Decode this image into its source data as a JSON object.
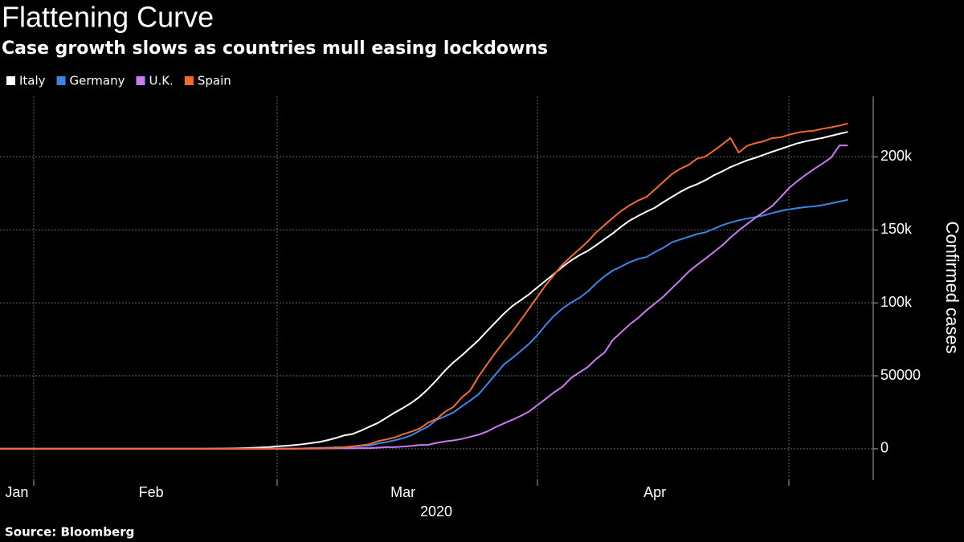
{
  "chart_data": {
    "type": "line",
    "title": "Flattening Curve",
    "subtitle": "Case growth slows as countries mull easing lockdowns",
    "y_label": "Confirmed cases",
    "x_label": "2020",
    "source": "Source: Bloomberg",
    "categories": [
      null,
      null,
      "Jan",
      null,
      null,
      null,
      null,
      null,
      null,
      null,
      null,
      null,
      null,
      null,
      null,
      null,
      null,
      null,
      "Feb",
      null,
      null,
      null,
      null,
      null,
      null,
      null,
      null,
      null,
      null,
      null,
      null,
      null,
      null,
      null,
      null,
      null,
      null,
      null,
      null,
      null,
      null,
      null,
      null,
      null,
      null,
      null,
      null,
      null,
      "Mar",
      null,
      null,
      null,
      null,
      null,
      null,
      null,
      null,
      null,
      null,
      null,
      null,
      null,
      null,
      null,
      null,
      null,
      null,
      null,
      null,
      null,
      null,
      null,
      null,
      null,
      null,
      null,
      null,
      null,
      "Apr",
      null,
      null,
      null,
      null,
      null,
      null,
      null,
      null,
      null,
      null,
      null,
      null,
      null,
      null,
      null,
      null,
      null,
      null,
      null,
      null,
      null,
      null,
      null
    ],
    "series": [
      {
        "name": "Italy",
        "color": "#ffffff",
        "values": [
          0,
          0,
          0,
          2,
          2,
          2,
          2,
          2,
          2,
          3,
          3,
          3,
          3,
          3,
          3,
          3,
          3,
          3,
          3,
          3,
          3,
          3,
          3,
          3,
          20,
          79,
          150,
          229,
          322,
          453,
          655,
          888,
          1128,
          1694,
          2036,
          2502,
          3089,
          3858,
          4636,
          5883,
          7375,
          9172,
          10149,
          12462,
          15113,
          17660,
          21157,
          24747,
          27980,
          31506,
          35713,
          41035,
          47021,
          53578,
          59138,
          63927,
          69176,
          74386,
          80589,
          86498,
          92472,
          97689,
          101739,
          105792,
          110574,
          115242,
          119827,
          124632,
          128948,
          132547,
          135586,
          139422,
          143626,
          147577,
          152271,
          156363,
          159516,
          162488,
          165155,
          168941,
          172434,
          175925,
          178972,
          181228,
          183957,
          187327,
          189973,
          192994,
          195351,
          197675,
          199414,
          201505,
          203591,
          205463,
          207428,
          209328,
          210717,
          211938,
          213013,
          214457,
          215858,
          217185
        ]
      },
      {
        "name": "Germany",
        "color": "#3a86e8",
        "values": [
          4,
          4,
          4,
          5,
          8,
          10,
          12,
          12,
          12,
          12,
          13,
          13,
          14,
          14,
          16,
          16,
          16,
          16,
          16,
          16,
          16,
          16,
          16,
          16,
          16,
          16,
          16,
          16,
          18,
          27,
          46,
          48,
          79,
          130,
          159,
          196,
          262,
          482,
          670,
          799,
          1040,
          1176,
          1457,
          1908,
          2078,
          3675,
          4585,
          5795,
          7272,
          9257,
          12327,
          15320,
          19848,
          22213,
          24873,
          29056,
          32986,
          37323,
          43938,
          50871,
          57695,
          62095,
          66885,
          71808,
          77872,
          84794,
          91159,
          96092,
          100123,
          103374,
          107663,
          113296,
          118181,
          122171,
          124908,
          127854,
          130072,
          131359,
          134753,
          137698,
          141397,
          143342,
          145184,
          147065,
          148291,
          150648,
          153129,
          154999,
          156513,
          157770,
          158758,
          159912,
          161539,
          163009,
          164077,
          164967,
          165664,
          166152,
          167007,
          168162,
          169430,
          170588
        ]
      },
      {
        "name": "U.K.",
        "color": "#c77cf0",
        "values": [
          0,
          0,
          0,
          2,
          2,
          2,
          2,
          2,
          2,
          2,
          2,
          2,
          3,
          8,
          8,
          9,
          9,
          9,
          9,
          9,
          9,
          9,
          9,
          9,
          9,
          9,
          9,
          13,
          13,
          13,
          15,
          20,
          23,
          36,
          40,
          51,
          86,
          116,
          164,
          207,
          274,
          322,
          384,
          459,
          459,
          802,
          1144,
          1145,
          1551,
          1960,
          2642,
          2716,
          4014,
          5067,
          5745,
          6726,
          8164,
          9640,
          11812,
          14745,
          17312,
          19780,
          22453,
          25481,
          29865,
          34173,
          38689,
          42477,
          48436,
          52279,
          55949,
          61474,
          65872,
          74605,
          79874,
          85206,
          89570,
          94845,
          99483,
          104145,
          109769,
          115314,
          121172,
          125856,
          130172,
          134638,
          139246,
          144640,
          149569,
          154037,
          158348,
          162350,
          166441,
          172481,
          178685,
          183500,
          187842,
          191832,
          195524,
          199503,
          207900,
          207900
        ]
      },
      {
        "name": "Spain",
        "color": "#f26a2e",
        "values": [
          0,
          0,
          0,
          0,
          1,
          1,
          1,
          1,
          1,
          1,
          1,
          1,
          2,
          2,
          2,
          2,
          2,
          2,
          2,
          2,
          2,
          2,
          2,
          2,
          2,
          2,
          2,
          2,
          6,
          13,
          15,
          32,
          45,
          84,
          120,
          165,
          222,
          259,
          400,
          500,
          673,
          1073,
          1695,
          2277,
          3146,
          5232,
          6391,
          7798,
          9942,
          11748,
          13910,
          17963,
          20410,
          25374,
          28603,
          35136,
          39885,
          49515,
          57786,
          65719,
          73235,
          80110,
          87956,
          95923,
          104118,
          112065,
          119199,
          126168,
          131646,
          136675,
          141942,
          148220,
          153222,
          158273,
          163027,
          166831,
          170099,
          172541,
          177633,
          182816,
          188068,
          191726,
          194416,
          198674,
          200210,
          204178,
          208389,
          213024,
          202990,
          207634,
          209465,
          210773,
          212917,
          213435,
          215216,
          216582,
          217466,
          218011,
          219329,
          220325,
          221447,
          222857
        ]
      }
    ],
    "ylim": [
      -21500,
      241500
    ],
    "yticks": [
      0,
      50000,
      {
        "value": 100000,
        "label": "100k"
      },
      {
        "value": 150000,
        "label": "150k"
      },
      {
        "value": 200000,
        "label": "200k"
      }
    ],
    "grid": true,
    "legend": "top-left"
  }
}
